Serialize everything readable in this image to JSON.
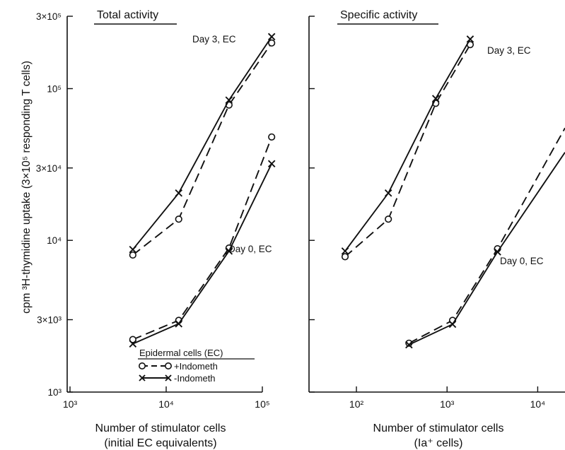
{
  "chart_data": {
    "type": "line",
    "ylabel": "cpm ³H-thymidine uptake (3×10⁵ responding T cells)",
    "ylim": [
      1000,
      300000
    ],
    "yscale": "log",
    "y_ticks": [
      {
        "value": 1000,
        "label": "10³"
      },
      {
        "value": 3000,
        "label": "3×10³"
      },
      {
        "value": 10000,
        "label": "10⁴"
      },
      {
        "value": 30000,
        "label": "3×10⁴"
      },
      {
        "value": 100000,
        "label": "10⁵"
      },
      {
        "value": 300000,
        "label": "3×10⁵"
      }
    ],
    "legend": {
      "title": "Epidermal cells (EC)",
      "items": [
        {
          "style": "dashed-circle",
          "label": "+Indometh"
        },
        {
          "style": "solid-cross",
          "label": "-Indometh"
        }
      ],
      "placement": "bottom-right"
    },
    "panels": [
      {
        "title": "Total activity",
        "xlabel_line1": "Number of stimulator cells",
        "xlabel_line2": "(initial EC equivalents)",
        "xscale": "log",
        "xlim": [
          1000,
          100000
        ],
        "x_ticks": [
          {
            "value": 1000,
            "label": "10³"
          },
          {
            "value": 10000,
            "label": "10⁴"
          },
          {
            "value": 100000,
            "label": "10⁵"
          }
        ],
        "series": [
          {
            "label": "Day 3, EC",
            "indometh": "+",
            "x": [
              4500,
              13500,
              45000,
              125000
            ],
            "y": [
              8000,
              13800,
              78000,
              200000
            ]
          },
          {
            "label": "Day 3, EC",
            "indometh": "-",
            "x": [
              4500,
              13500,
              45000,
              125000
            ],
            "y": [
              8700,
              20500,
              84000,
              220000
            ]
          },
          {
            "label": "Day 0, EC",
            "indometh": "+",
            "x": [
              4500,
              13500,
              45000,
              125000
            ],
            "y": [
              2220,
              2970,
              8900,
              48000
            ]
          },
          {
            "label": "Day 0, EC",
            "indometh": "-",
            "x": [
              4500,
              13500,
              45000,
              125000
            ],
            "y": [
              2080,
              2820,
              8500,
              32000
            ]
          }
        ]
      },
      {
        "title": "Specific activity",
        "xlabel_line1": "Number of stimulator cells",
        "xlabel_line2": "(Ia⁺ cells)",
        "xscale": "log",
        "xlim": [
          30,
          20000
        ],
        "x_ticks": [
          {
            "value": 100,
            "label": "10²"
          },
          {
            "value": 1000,
            "label": "10³"
          },
          {
            "value": 10000,
            "label": "10⁴"
          }
        ],
        "series": [
          {
            "label": "Day 3, EC",
            "indometh": "+",
            "x": [
              75,
              225,
              750,
              1800
            ],
            "y": [
              7800,
              13800,
              80000,
              195000
            ]
          },
          {
            "label": "Day 3, EC",
            "indometh": "-",
            "x": [
              75,
              225,
              750,
              1800
            ],
            "y": [
              8500,
              20500,
              86000,
              212000
            ]
          },
          {
            "label": "Day 0, EC",
            "indometh": "+",
            "x": [
              380,
              1150,
              3600,
              20000
            ],
            "y": [
              2100,
              2970,
              8800,
              55000
            ]
          },
          {
            "label": "Day 0, EC",
            "indometh": "-",
            "x": [
              380,
              1150,
              3600,
              20000
            ],
            "y": [
              2050,
              2800,
              8400,
              38000
            ]
          }
        ]
      }
    ]
  }
}
